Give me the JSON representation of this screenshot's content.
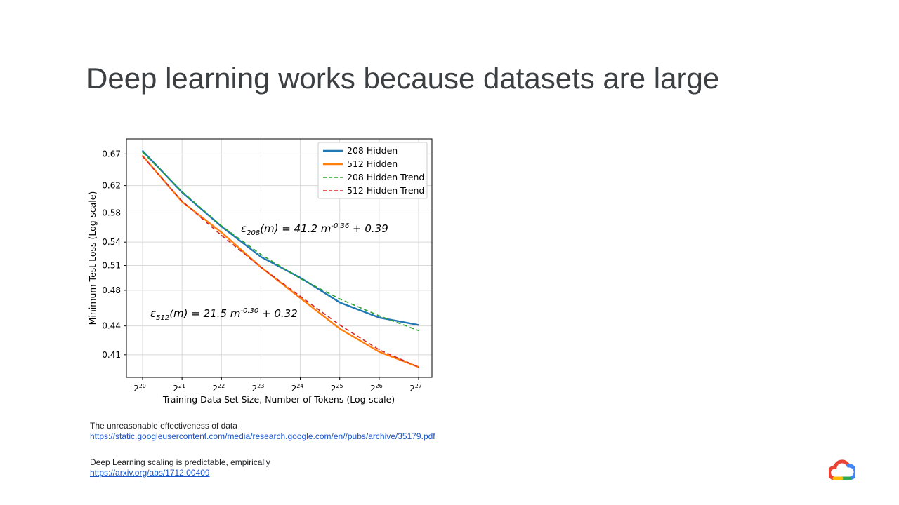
{
  "slide": {
    "title": "Deep learning works because datasets are large"
  },
  "references": [
    {
      "text": "The unreasonable effectiveness of data",
      "url": "https://static.googleusercontent.com/media/research.google.com/en//pubs/archive/35179.pdf"
    },
    {
      "text": "Deep Learning scaling is predictable, empirically",
      "url": "https://arxiv.org/abs/1712.00409"
    }
  ],
  "logo": {
    "icon": "google-cloud-logo-icon",
    "colors": [
      "#ea4335",
      "#4285f4",
      "#34a853",
      "#fbbc04"
    ]
  },
  "chart_data": {
    "type": "line",
    "xlabel": "Training Data Set Size, Number of Tokens (Log-scale)",
    "ylabel": "Minimum Test Loss (Log-scale)",
    "x_scale": "log2",
    "y_scale": "log",
    "x": [
      1048576,
      2097152,
      4194304,
      8388608,
      16777216,
      33554432,
      67108864,
      134217728
    ],
    "x_tick_labels": [
      {
        "base": "2",
        "exp": "20"
      },
      {
        "base": "2",
        "exp": "21"
      },
      {
        "base": "2",
        "exp": "22"
      },
      {
        "base": "2",
        "exp": "23"
      },
      {
        "base": "2",
        "exp": "24"
      },
      {
        "base": "2",
        "exp": "25"
      },
      {
        "base": "2",
        "exp": "26"
      },
      {
        "base": "2",
        "exp": "27"
      }
    ],
    "y_ticks": [
      0.41,
      0.44,
      0.48,
      0.51,
      0.54,
      0.58,
      0.62,
      0.67
    ],
    "y_tick_labels": [
      "0.41",
      "0.44",
      "0.48",
      "0.51",
      "0.54",
      "0.58",
      "0.62",
      "0.67"
    ],
    "xlim": [
      1048576,
      134217728
    ],
    "ylim": [
      0.388,
      0.695
    ],
    "grid": true,
    "legend_position": "top-right",
    "series": [
      {
        "name": "208 Hidden",
        "color": "#1f77b4",
        "style": "solid",
        "values": [
          0.675,
          0.61,
          0.561,
          0.521,
          0.495,
          0.466,
          0.449,
          0.441
        ]
      },
      {
        "name": "512 Hidden",
        "color": "#ff7f0e",
        "style": "solid",
        "values": [
          0.667,
          0.596,
          0.553,
          0.508,
          0.471,
          0.437,
          0.413,
          0.398
        ]
      },
      {
        "name": "208 Hidden Trend",
        "color": "#2ca02c",
        "style": "dashed",
        "values": [
          0.673,
          0.611,
          0.562,
          0.524,
          0.494,
          0.47,
          0.451,
          0.435
        ]
      },
      {
        "name": "512 Hidden Trend",
        "color": "#d62728",
        "style": "dashed",
        "values": [
          0.666,
          0.597,
          0.549,
          0.508,
          0.473,
          0.441,
          0.415,
          0.398
        ]
      }
    ],
    "annotations": [
      {
        "eps": "ε",
        "sub": "208",
        "mid": "(m) = 41.2 m",
        "sup": "-0.36",
        "tail": " + 0.39"
      },
      {
        "eps": "ε",
        "sub": "512",
        "mid": "(m) = 21.5 m",
        "sup": "-0.30",
        "tail": " + 0.32"
      }
    ]
  }
}
